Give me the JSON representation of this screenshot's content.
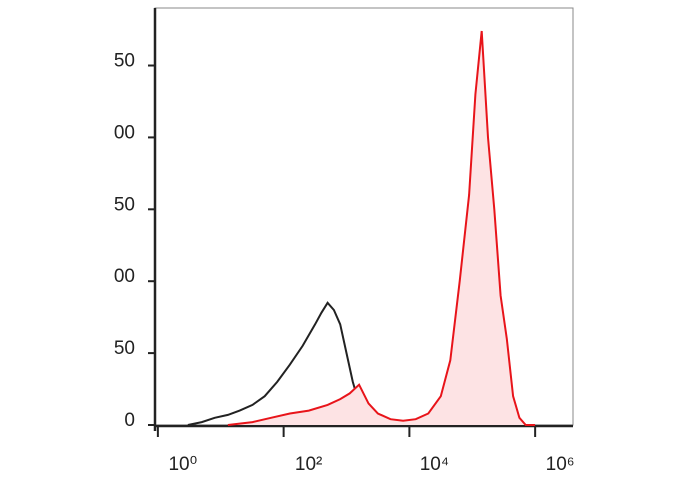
{
  "chart_data": {
    "type": "histogram-line",
    "xscale": "log",
    "xlim": [
      0.9,
      4000000
    ],
    "xticks": [
      {
        "value": 1,
        "label": "10⁰"
      },
      {
        "value": 100,
        "label": "10²"
      },
      {
        "value": 10000,
        "label": "10⁴"
      },
      {
        "value": 1000000,
        "label": "10⁶"
      }
    ],
    "ylim": [
      0,
      290
    ],
    "yticks": [
      0,
      50,
      {
        "value": 100,
        "label": "00"
      },
      {
        "value": 150,
        "label": "50"
      },
      {
        "value": 200,
        "label": "00"
      },
      {
        "value": 250,
        "label": "50"
      }
    ],
    "series": [
      {
        "color": "#222222",
        "fill": null,
        "x": [
          3,
          5,
          8,
          13,
          20,
          32,
          50,
          79,
          126,
          200,
          316,
          398,
          501,
          631,
          794,
          1000,
          1259,
          1585,
          1995,
          2512,
          3162
        ],
        "values": [
          0,
          2,
          5,
          7,
          10,
          14,
          20,
          30,
          42,
          55,
          70,
          78,
          85,
          80,
          70,
          50,
          30,
          15,
          5,
          1,
          0
        ]
      },
      {
        "color": "#e8141a",
        "fill": "#fde3e4",
        "x": [
          13,
          32,
          63,
          126,
          251,
          501,
          794,
          1122,
          1585,
          2239,
          3162,
          5012,
          7943,
          12589,
          19953,
          31623,
          44668,
          63096,
          89125,
          112202,
          141254,
          177828,
          223872,
          281838,
          354813,
          446684,
          562341,
          707946,
          1000000
        ],
        "values": [
          0,
          2,
          5,
          8,
          10,
          14,
          18,
          22,
          28,
          15,
          8,
          4,
          3,
          4,
          8,
          20,
          45,
          100,
          160,
          230,
          274,
          200,
          150,
          90,
          60,
          20,
          5,
          0,
          0
        ]
      }
    ]
  }
}
